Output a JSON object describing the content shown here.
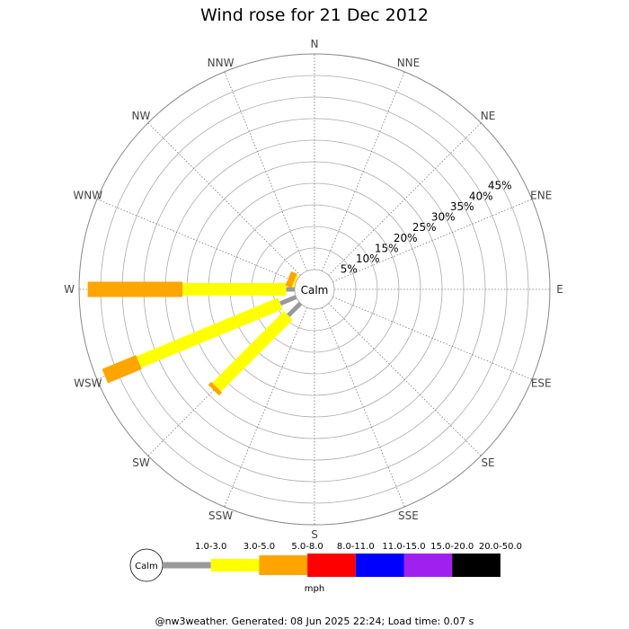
{
  "chart_data": {
    "type": "windrose",
    "title": "Wind rose for 21 Dec 2012",
    "directions": [
      "N",
      "NNE",
      "NE",
      "ENE",
      "E",
      "ESE",
      "SE",
      "SSE",
      "S",
      "SSW",
      "SW",
      "WSW",
      "W",
      "WNW",
      "NW",
      "NNW"
    ],
    "ring_labels": [
      "5%",
      "10%",
      "15%",
      "20%",
      "25%",
      "30%",
      "35%",
      "40%",
      "45%"
    ],
    "ring_values": [
      5,
      10,
      15,
      20,
      25,
      30,
      35,
      40,
      45
    ],
    "rmax": 50,
    "calm_label": "Calm",
    "speed_bins": [
      {
        "label": "1.0-3.0",
        "color": "#999999"
      },
      {
        "label": "3.0-5.0",
        "color": "#ffff00"
      },
      {
        "label": "5.0-8.0",
        "color": "#ffa500"
      },
      {
        "label": "8.0-11.0",
        "color": "#ff0000"
      },
      {
        "label": "11.0-15.0",
        "color": "#0000ff"
      },
      {
        "label": "15.0-20.0",
        "color": "#a020f0"
      },
      {
        "label": "20.0-50.0",
        "color": "#000000"
      }
    ],
    "unit": "mph",
    "series": [
      {
        "direction": "W",
        "values": [
          2,
          24,
          22,
          0,
          0,
          0,
          0
        ]
      },
      {
        "direction": "WSW",
        "values": [
          4,
          35.5,
          8.5,
          0,
          0,
          0,
          0
        ]
      },
      {
        "direction": "SW",
        "values": [
          4,
          23.5,
          1,
          0,
          0,
          0,
          0
        ]
      },
      {
        "direction": "WNW",
        "values": [
          0,
          0.5,
          1.5,
          0,
          0,
          0,
          0
        ]
      }
    ]
  },
  "footer": "@nw3weather. Generated: 08 Jun 2025 22:24; Load time: 0.07 s"
}
